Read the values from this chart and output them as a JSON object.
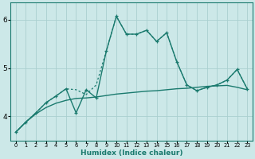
{
  "xlabel": "Humidex (Indice chaleur)",
  "xlim": [
    -0.5,
    23.5
  ],
  "ylim": [
    3.5,
    6.35
  ],
  "yticks": [
    4,
    5,
    6
  ],
  "xticks": [
    0,
    1,
    2,
    3,
    4,
    5,
    6,
    7,
    8,
    9,
    10,
    11,
    12,
    13,
    14,
    15,
    16,
    17,
    18,
    19,
    20,
    21,
    22,
    23
  ],
  "bg_color": "#cce8e8",
  "grid_color": "#aacfcf",
  "line_color": "#1a7a6e",
  "solid_marker_x": [
    0,
    1,
    2,
    3,
    4,
    5,
    6,
    7,
    8,
    9,
    10,
    11,
    12,
    13,
    14,
    15,
    16,
    17,
    18,
    19,
    20,
    21,
    22,
    23
  ],
  "solid_marker_y": [
    3.67,
    3.88,
    4.07,
    4.28,
    4.42,
    4.57,
    4.07,
    4.55,
    4.38,
    5.35,
    6.07,
    5.7,
    5.7,
    5.78,
    5.55,
    5.73,
    5.13,
    4.65,
    4.53,
    4.6,
    4.65,
    4.75,
    4.97,
    4.57
  ],
  "dotted_x": [
    0,
    1,
    2,
    3,
    4,
    5,
    6,
    7,
    8,
    9,
    10,
    11,
    12,
    13,
    14,
    15,
    16,
    17,
    18,
    19,
    20,
    21,
    22,
    23
  ],
  "dotted_y": [
    3.67,
    3.88,
    4.07,
    4.28,
    4.42,
    4.57,
    4.55,
    4.45,
    4.65,
    5.35,
    6.07,
    5.7,
    5.7,
    5.78,
    5.55,
    5.73,
    5.13,
    4.65,
    4.53,
    4.6,
    4.65,
    4.75,
    4.97,
    4.57
  ],
  "smooth_x": [
    0,
    1,
    2,
    3,
    4,
    5,
    6,
    7,
    8,
    9,
    10,
    11,
    12,
    13,
    14,
    15,
    16,
    17,
    18,
    19,
    20,
    21,
    22,
    23
  ],
  "smooth_y": [
    3.67,
    3.88,
    4.05,
    4.18,
    4.27,
    4.33,
    4.37,
    4.38,
    4.4,
    4.43,
    4.46,
    4.48,
    4.5,
    4.52,
    4.53,
    4.55,
    4.57,
    4.58,
    4.6,
    4.62,
    4.63,
    4.64,
    4.6,
    4.55
  ]
}
